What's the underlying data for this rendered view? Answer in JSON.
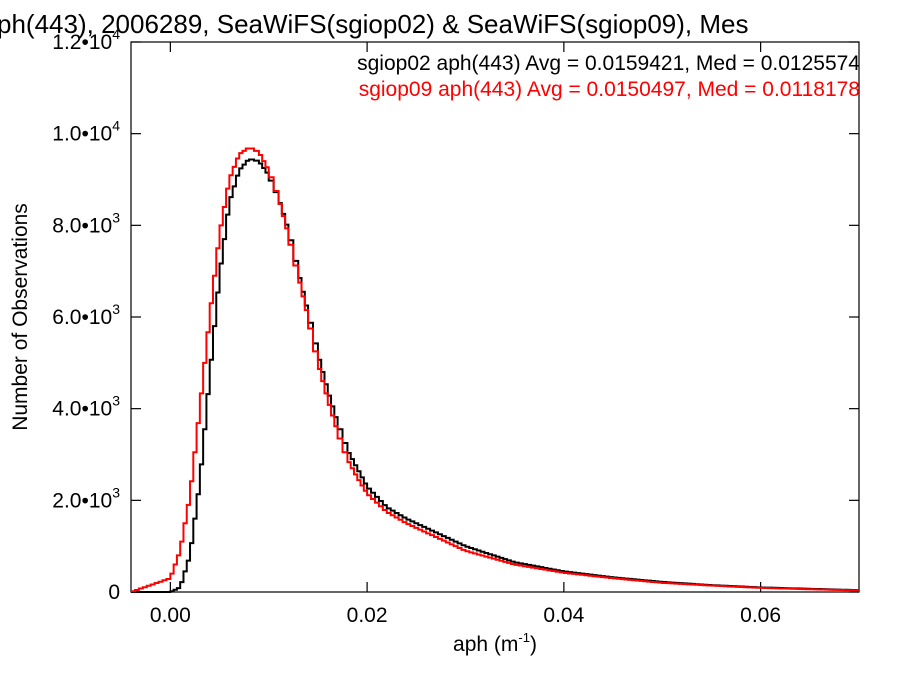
{
  "chart_data": {
    "type": "line",
    "title": "ph(443), 2006289, SeaWiFS(sgiop02) & SeaWiFS(sgiop09), Mes",
    "xlabel": "aph (m",
    "xlabel_sup": "-1",
    "xlabel_end": ")",
    "ylabel": "Number of Observations",
    "xlim": [
      -0.004,
      0.07
    ],
    "ylim": [
      0,
      12000
    ],
    "grid": false,
    "legend_position": "top-right",
    "x_ticks": [
      {
        "value": 0.0,
        "label": "0.00"
      },
      {
        "value": 0.02,
        "label": "0.02"
      },
      {
        "value": 0.04,
        "label": "0.04"
      },
      {
        "value": 0.06,
        "label": "0.06"
      }
    ],
    "y_ticks": [
      {
        "value": 0,
        "mant": "0",
        "exp": ""
      },
      {
        "value": 2000,
        "mant": "2.0•10",
        "exp": "3"
      },
      {
        "value": 4000,
        "mant": "4.0•10",
        "exp": "3"
      },
      {
        "value": 6000,
        "mant": "6.0•10",
        "exp": "3"
      },
      {
        "value": 8000,
        "mant": "8.0•10",
        "exp": "3"
      },
      {
        "value": 10000,
        "mant": "1.0•10",
        "exp": "4"
      },
      {
        "value": 12000,
        "mant": "1.2•10",
        "exp": "4"
      }
    ],
    "series": [
      {
        "name": "sgiop02",
        "legend": "sgiop02 aph(443) Avg = 0.0159421, Med = 0.0125574",
        "color": "#000000",
        "x": [
          -0.004,
          0.0,
          0.001,
          0.002,
          0.003,
          0.004,
          0.005,
          0.006,
          0.007,
          0.008,
          0.009,
          0.01,
          0.011,
          0.012,
          0.013,
          0.014,
          0.015,
          0.016,
          0.017,
          0.018,
          0.019,
          0.02,
          0.022,
          0.024,
          0.026,
          0.028,
          0.03,
          0.035,
          0.04,
          0.045,
          0.05,
          0.055,
          0.06,
          0.065,
          0.07
        ],
        "y": [
          0,
          0,
          100,
          800,
          2400,
          4700,
          6900,
          8500,
          9200,
          9450,
          9400,
          9100,
          8600,
          7900,
          7000,
          6100,
          5200,
          4400,
          3700,
          3100,
          2700,
          2300,
          1850,
          1600,
          1400,
          1200,
          1000,
          650,
          450,
          320,
          220,
          150,
          100,
          70,
          40
        ]
      },
      {
        "name": "sgiop09",
        "legend": "sgiop09 aph(443) Avg = 0.0150497, Med = 0.0118178",
        "color": "#ff0000",
        "x": [
          -0.004,
          0.0,
          0.001,
          0.002,
          0.003,
          0.004,
          0.005,
          0.006,
          0.007,
          0.008,
          0.009,
          0.01,
          0.011,
          0.012,
          0.013,
          0.014,
          0.015,
          0.016,
          0.017,
          0.018,
          0.019,
          0.02,
          0.022,
          0.024,
          0.026,
          0.028,
          0.03,
          0.035,
          0.04,
          0.045,
          0.05,
          0.055,
          0.06,
          0.065,
          0.07
        ],
        "y": [
          0,
          300,
          900,
          2100,
          4000,
          6000,
          7800,
          9000,
          9550,
          9700,
          9600,
          9200,
          8600,
          7800,
          6900,
          6000,
          5000,
          4200,
          3500,
          2900,
          2500,
          2150,
          1750,
          1500,
          1300,
          1100,
          900,
          600,
          420,
          300,
          200,
          140,
          90,
          60,
          35
        ]
      }
    ]
  }
}
